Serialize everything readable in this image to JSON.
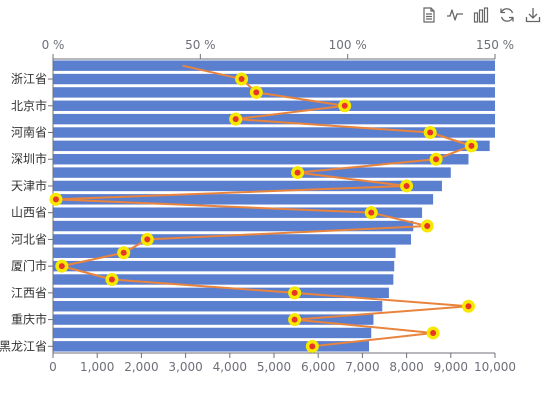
{
  "toolbox": {
    "items": [
      {
        "icon": "data-view-icon"
      },
      {
        "icon": "line-chart-icon"
      },
      {
        "icon": "bar-chart-icon"
      },
      {
        "icon": "restore-icon"
      },
      {
        "icon": "save-image-icon"
      }
    ],
    "icon_color": "#666666"
  },
  "chart_data": {
    "type": "bar",
    "orientation": "horizontal",
    "categories": [
      "黑龙江省",
      "",
      "重庆市",
      "",
      "江西省",
      "",
      "厦门市",
      "",
      "河北省",
      "",
      "山西省",
      "",
      "天津市",
      "",
      "深圳市",
      "",
      "河南省",
      "",
      "北京市",
      "",
      "浙江省",
      ""
    ],
    "category_labels_shown": [
      "黑龙江省",
      "重庆市",
      "江西省",
      "厦门市",
      "河北省",
      "山西省",
      "天津市",
      "深圳市",
      "河南省",
      "北京市",
      "浙江省"
    ],
    "series": [
      {
        "type": "bar",
        "color": "#5b7fcf",
        "axis": "bottom",
        "values": [
          7150,
          7200,
          7250,
          7450,
          7600,
          7700,
          7720,
          7750,
          8100,
          8150,
          8350,
          8600,
          8800,
          9000,
          9400,
          9880,
          10000,
          10000,
          10000,
          10000,
          10000,
          10000
        ]
      },
      {
        "type": "line",
        "color": "#e8843d",
        "marker_fill": "#e8352a",
        "marker_halo": "#f7e800",
        "axis": "top",
        "values": [
          88,
          129,
          82,
          141,
          82,
          20,
          3,
          24,
          32,
          127,
          108,
          1,
          120,
          83,
          130,
          142,
          128,
          62,
          99,
          69,
          64,
          44
        ]
      }
    ],
    "x_axis_bottom": {
      "min": 0,
      "max": 10000,
      "ticks": [
        "0",
        "1,000",
        "2,000",
        "3,000",
        "4,000",
        "5,000",
        "6,000",
        "7,000",
        "8,000",
        "9,000",
        "10,000"
      ]
    },
    "x_axis_top": {
      "min": 0,
      "max": 150,
      "ticks": [
        "0 %",
        "50 %",
        "100 %",
        "150 %"
      ]
    },
    "grid": false,
    "legend": "none"
  }
}
